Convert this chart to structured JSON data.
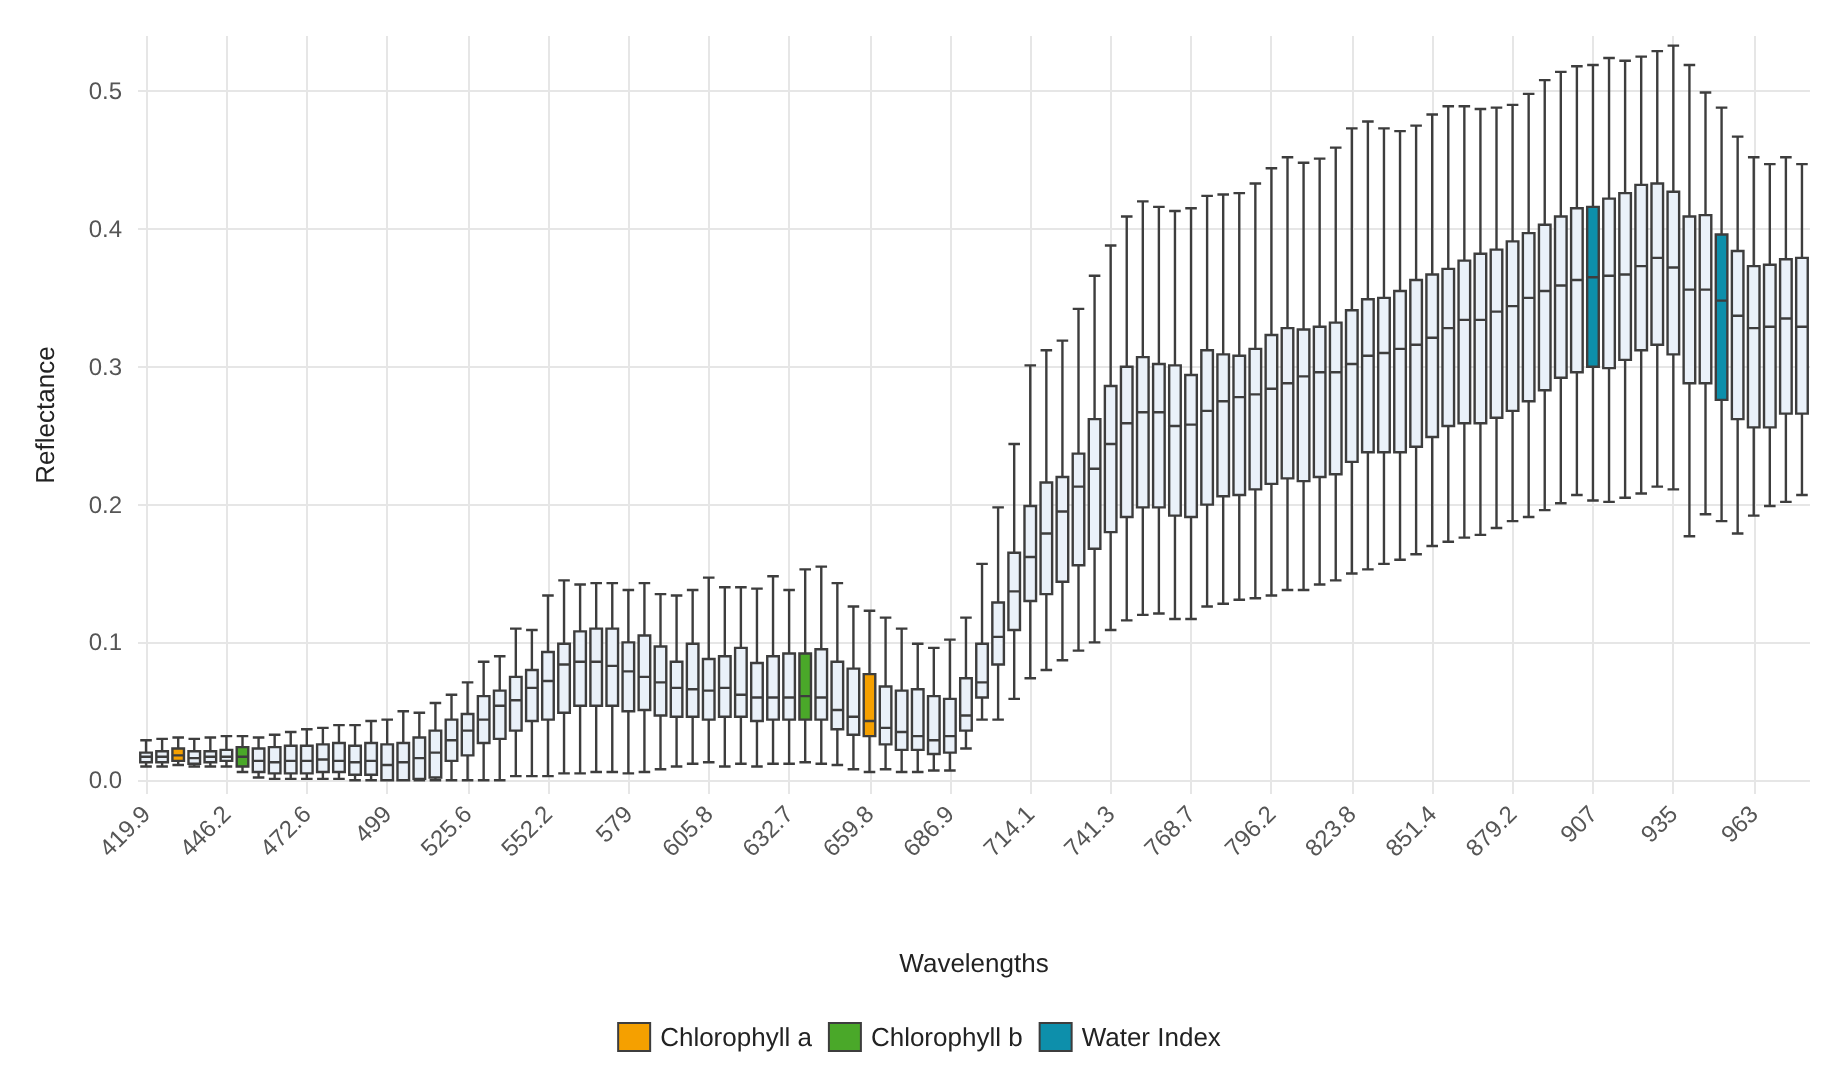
{
  "chart_data": {
    "type": "box",
    "xlabel": "Wavelengths",
    "ylabel": "Reflectance",
    "categories": [
      "419.9",
      null,
      null,
      null,
      null,
      "446.2",
      null,
      null,
      null,
      null,
      "472.6",
      null,
      null,
      null,
      null,
      "499",
      null,
      null,
      null,
      null,
      "525.6",
      null,
      null,
      null,
      null,
      "552.2",
      null,
      null,
      null,
      null,
      "579",
      null,
      null,
      null,
      null,
      "605.8",
      null,
      null,
      null,
      null,
      "632.7",
      null,
      null,
      null,
      null,
      "659.8",
      null,
      null,
      null,
      null,
      "686.9",
      null,
      null,
      null,
      null,
      "714.1",
      null,
      null,
      null,
      null,
      "741.3",
      null,
      null,
      null,
      null,
      "768.7",
      null,
      null,
      null,
      null,
      "796.2",
      null,
      null,
      null,
      null,
      "823.8",
      null,
      null,
      null,
      null,
      "851.4",
      null,
      null,
      null,
      null,
      "879.2",
      null,
      null,
      null,
      null,
      "907",
      null,
      null,
      null,
      null,
      "935",
      null,
      null,
      null,
      null,
      "963",
      null,
      null,
      null
    ],
    "ylim": [
      -0.01,
      0.54
    ],
    "yticks": [
      {
        "value": 0,
        "label": "0.0"
      },
      {
        "value": 0.1,
        "label": "0.1"
      },
      {
        "value": 0.2,
        "label": "0.2"
      },
      {
        "value": 0.3,
        "label": "0.3"
      },
      {
        "value": 0.4,
        "label": "0.4"
      },
      {
        "value": 0.5,
        "label": "0.5"
      }
    ],
    "grid": true,
    "legend": "bottom",
    "series": [
      {
        "color": "#eaf1f9",
        "boxes": [
          {
            "low": 0.01,
            "q1": 0.013,
            "median": 0.017,
            "q3": 0.02,
            "high": 0.029
          },
          {
            "low": 0.01,
            "q1": 0.013,
            "median": 0.017,
            "q3": 0.021,
            "high": 0.03
          },
          null,
          {
            "low": 0.01,
            "q1": 0.012,
            "median": 0.016,
            "q3": 0.021,
            "high": 0.03
          },
          {
            "low": 0.01,
            "q1": 0.013,
            "median": 0.017,
            "q3": 0.021,
            "high": 0.031
          },
          {
            "low": 0.01,
            "q1": 0.014,
            "median": 0.017,
            "q3": 0.022,
            "high": 0.032
          },
          null,
          {
            "low": 0.002,
            "q1": 0.006,
            "median": 0.014,
            "q3": 0.023,
            "high": 0.031
          },
          {
            "low": 0.001,
            "q1": 0.005,
            "median": 0.013,
            "q3": 0.024,
            "high": 0.033
          },
          {
            "low": 0.001,
            "q1": 0.005,
            "median": 0.014,
            "q3": 0.025,
            "high": 0.035
          },
          {
            "low": 0.001,
            "q1": 0.005,
            "median": 0.014,
            "q3": 0.025,
            "high": 0.037
          },
          {
            "low": 0.001,
            "q1": 0.006,
            "median": 0.015,
            "q3": 0.026,
            "high": 0.038
          },
          {
            "low": 0.001,
            "q1": 0.006,
            "median": 0.014,
            "q3": 0.027,
            "high": 0.04
          },
          {
            "low": 0.0,
            "q1": 0.004,
            "median": 0.013,
            "q3": 0.025,
            "high": 0.04
          },
          {
            "low": 0.0,
            "q1": 0.004,
            "median": 0.014,
            "q3": 0.027,
            "high": 0.043
          },
          {
            "low": 0.0,
            "q1": 0.0,
            "median": 0.011,
            "q3": 0.026,
            "high": 0.044
          },
          {
            "low": 0.0,
            "q1": 0.0,
            "median": 0.013,
            "q3": 0.027,
            "high": 0.05
          },
          {
            "low": 0.0,
            "q1": 0.001,
            "median": 0.016,
            "q3": 0.031,
            "high": 0.049
          },
          {
            "low": 0.0,
            "q1": 0.002,
            "median": 0.02,
            "q3": 0.036,
            "high": 0.056
          },
          {
            "low": 0.0,
            "q1": 0.014,
            "median": 0.029,
            "q3": 0.044,
            "high": 0.062
          },
          {
            "low": 0.0,
            "q1": 0.018,
            "median": 0.036,
            "q3": 0.048,
            "high": 0.071
          },
          {
            "low": 0.0,
            "q1": 0.027,
            "median": 0.044,
            "q3": 0.061,
            "high": 0.086
          },
          {
            "low": 0.0,
            "q1": 0.03,
            "median": 0.054,
            "q3": 0.065,
            "high": 0.09
          },
          {
            "low": 0.003,
            "q1": 0.036,
            "median": 0.058,
            "q3": 0.075,
            "high": 0.11
          },
          {
            "low": 0.003,
            "q1": 0.043,
            "median": 0.067,
            "q3": 0.08,
            "high": 0.109
          },
          {
            "low": 0.003,
            "q1": 0.044,
            "median": 0.072,
            "q3": 0.093,
            "high": 0.134
          },
          {
            "low": 0.005,
            "q1": 0.049,
            "median": 0.084,
            "q3": 0.099,
            "high": 0.145
          },
          {
            "low": 0.005,
            "q1": 0.054,
            "median": 0.086,
            "q3": 0.108,
            "high": 0.142
          },
          {
            "low": 0.006,
            "q1": 0.054,
            "median": 0.086,
            "q3": 0.11,
            "high": 0.143
          },
          {
            "low": 0.006,
            "q1": 0.054,
            "median": 0.083,
            "q3": 0.11,
            "high": 0.143
          },
          {
            "low": 0.005,
            "q1": 0.05,
            "median": 0.079,
            "q3": 0.1,
            "high": 0.138
          },
          {
            "low": 0.006,
            "q1": 0.051,
            "median": 0.075,
            "q3": 0.105,
            "high": 0.143
          },
          {
            "low": 0.008,
            "q1": 0.047,
            "median": 0.071,
            "q3": 0.097,
            "high": 0.135
          },
          {
            "low": 0.01,
            "q1": 0.046,
            "median": 0.067,
            "q3": 0.086,
            "high": 0.134
          },
          {
            "low": 0.012,
            "q1": 0.046,
            "median": 0.066,
            "q3": 0.099,
            "high": 0.138
          },
          {
            "low": 0.013,
            "q1": 0.044,
            "median": 0.065,
            "q3": 0.088,
            "high": 0.147
          },
          {
            "low": 0.01,
            "q1": 0.046,
            "median": 0.067,
            "q3": 0.09,
            "high": 0.14
          },
          {
            "low": 0.012,
            "q1": 0.046,
            "median": 0.062,
            "q3": 0.096,
            "high": 0.14
          },
          {
            "low": 0.01,
            "q1": 0.043,
            "median": 0.06,
            "q3": 0.085,
            "high": 0.139
          },
          {
            "low": 0.012,
            "q1": 0.044,
            "median": 0.06,
            "q3": 0.09,
            "high": 0.148
          },
          {
            "low": 0.012,
            "q1": 0.044,
            "median": 0.06,
            "q3": 0.092,
            "high": 0.138
          },
          null,
          {
            "low": 0.012,
            "q1": 0.044,
            "median": 0.06,
            "q3": 0.095,
            "high": 0.155
          },
          {
            "low": 0.011,
            "q1": 0.037,
            "median": 0.051,
            "q3": 0.086,
            "high": 0.143
          },
          {
            "low": 0.008,
            "q1": 0.033,
            "median": 0.046,
            "q3": 0.081,
            "high": 0.126
          },
          null,
          {
            "low": 0.008,
            "q1": 0.026,
            "median": 0.038,
            "q3": 0.068,
            "high": 0.118
          },
          {
            "low": 0.006,
            "q1": 0.022,
            "median": 0.035,
            "q3": 0.065,
            "high": 0.11
          },
          {
            "low": 0.006,
            "q1": 0.022,
            "median": 0.032,
            "q3": 0.066,
            "high": 0.099
          },
          {
            "low": 0.007,
            "q1": 0.019,
            "median": 0.029,
            "q3": 0.061,
            "high": 0.096
          },
          {
            "low": 0.007,
            "q1": 0.02,
            "median": 0.032,
            "q3": 0.059,
            "high": 0.102
          },
          {
            "low": 0.023,
            "q1": 0.036,
            "median": 0.047,
            "q3": 0.074,
            "high": 0.118
          },
          {
            "low": 0.044,
            "q1": 0.06,
            "median": 0.071,
            "q3": 0.099,
            "high": 0.157
          },
          {
            "low": 0.044,
            "q1": 0.084,
            "median": 0.104,
            "q3": 0.129,
            "high": 0.198
          },
          {
            "low": 0.059,
            "q1": 0.109,
            "median": 0.137,
            "q3": 0.165,
            "high": 0.244
          },
          {
            "low": 0.074,
            "q1": 0.13,
            "median": 0.162,
            "q3": 0.199,
            "high": 0.301
          },
          {
            "low": 0.08,
            "q1": 0.135,
            "median": 0.179,
            "q3": 0.216,
            "high": 0.312
          },
          {
            "low": 0.087,
            "q1": 0.144,
            "median": 0.195,
            "q3": 0.22,
            "high": 0.319
          },
          {
            "low": 0.094,
            "q1": 0.156,
            "median": 0.213,
            "q3": 0.237,
            "high": 0.342
          },
          {
            "low": 0.1,
            "q1": 0.168,
            "median": 0.226,
            "q3": 0.262,
            "high": 0.366
          },
          {
            "low": 0.109,
            "q1": 0.18,
            "median": 0.244,
            "q3": 0.286,
            "high": 0.388
          },
          {
            "low": 0.116,
            "q1": 0.191,
            "median": 0.259,
            "q3": 0.3,
            "high": 0.409
          },
          {
            "low": 0.12,
            "q1": 0.198,
            "median": 0.267,
            "q3": 0.307,
            "high": 0.42
          },
          {
            "low": 0.121,
            "q1": 0.198,
            "median": 0.267,
            "q3": 0.302,
            "high": 0.416
          },
          {
            "low": 0.117,
            "q1": 0.192,
            "median": 0.257,
            "q3": 0.301,
            "high": 0.413
          },
          {
            "low": 0.117,
            "q1": 0.191,
            "median": 0.258,
            "q3": 0.294,
            "high": 0.415
          },
          {
            "low": 0.126,
            "q1": 0.2,
            "median": 0.268,
            "q3": 0.312,
            "high": 0.424
          },
          {
            "low": 0.128,
            "q1": 0.206,
            "median": 0.275,
            "q3": 0.309,
            "high": 0.425
          },
          {
            "low": 0.131,
            "q1": 0.207,
            "median": 0.278,
            "q3": 0.308,
            "high": 0.426
          },
          {
            "low": 0.132,
            "q1": 0.211,
            "median": 0.28,
            "q3": 0.313,
            "high": 0.433
          },
          {
            "low": 0.134,
            "q1": 0.215,
            "median": 0.284,
            "q3": 0.323,
            "high": 0.444
          },
          {
            "low": 0.138,
            "q1": 0.219,
            "median": 0.288,
            "q3": 0.328,
            "high": 0.452
          },
          {
            "low": 0.138,
            "q1": 0.217,
            "median": 0.293,
            "q3": 0.327,
            "high": 0.448
          },
          {
            "low": 0.142,
            "q1": 0.22,
            "median": 0.296,
            "q3": 0.329,
            "high": 0.451
          },
          {
            "low": 0.145,
            "q1": 0.222,
            "median": 0.296,
            "q3": 0.332,
            "high": 0.459
          },
          {
            "low": 0.15,
            "q1": 0.231,
            "median": 0.302,
            "q3": 0.341,
            "high": 0.473
          },
          {
            "low": 0.153,
            "q1": 0.238,
            "median": 0.308,
            "q3": 0.349,
            "high": 0.478
          },
          {
            "low": 0.157,
            "q1": 0.238,
            "median": 0.31,
            "q3": 0.35,
            "high": 0.473
          },
          {
            "low": 0.16,
            "q1": 0.238,
            "median": 0.313,
            "q3": 0.355,
            "high": 0.471
          },
          {
            "low": 0.164,
            "q1": 0.242,
            "median": 0.316,
            "q3": 0.363,
            "high": 0.475
          },
          {
            "low": 0.17,
            "q1": 0.249,
            "median": 0.321,
            "q3": 0.367,
            "high": 0.483
          },
          {
            "low": 0.173,
            "q1": 0.257,
            "median": 0.328,
            "q3": 0.371,
            "high": 0.489
          },
          {
            "low": 0.176,
            "q1": 0.259,
            "median": 0.334,
            "q3": 0.377,
            "high": 0.489
          },
          {
            "low": 0.178,
            "q1": 0.259,
            "median": 0.334,
            "q3": 0.382,
            "high": 0.487
          },
          {
            "low": 0.183,
            "q1": 0.263,
            "median": 0.34,
            "q3": 0.385,
            "high": 0.488
          },
          {
            "low": 0.188,
            "q1": 0.268,
            "median": 0.344,
            "q3": 0.391,
            "high": 0.49
          },
          {
            "low": 0.191,
            "q1": 0.275,
            "median": 0.35,
            "q3": 0.397,
            "high": 0.498
          },
          {
            "low": 0.196,
            "q1": 0.283,
            "median": 0.355,
            "q3": 0.403,
            "high": 0.508
          },
          {
            "low": 0.201,
            "q1": 0.292,
            "median": 0.359,
            "q3": 0.409,
            "high": 0.514
          },
          {
            "low": 0.207,
            "q1": 0.296,
            "median": 0.363,
            "q3": 0.415,
            "high": 0.518
          },
          null,
          {
            "low": 0.202,
            "q1": 0.299,
            "median": 0.366,
            "q3": 0.422,
            "high": 0.524
          },
          {
            "low": 0.205,
            "q1": 0.305,
            "median": 0.367,
            "q3": 0.426,
            "high": 0.522
          },
          {
            "low": 0.208,
            "q1": 0.312,
            "median": 0.373,
            "q3": 0.432,
            "high": 0.525
          },
          {
            "low": 0.213,
            "q1": 0.316,
            "median": 0.379,
            "q3": 0.433,
            "high": 0.529
          },
          {
            "low": 0.211,
            "q1": 0.309,
            "median": 0.372,
            "q3": 0.427,
            "high": 0.533
          },
          {
            "low": 0.177,
            "q1": 0.288,
            "median": 0.356,
            "q3": 0.409,
            "high": 0.519
          },
          {
            "low": 0.193,
            "q1": 0.288,
            "median": 0.356,
            "q3": 0.41,
            "high": 0.499
          },
          null,
          {
            "low": 0.179,
            "q1": 0.262,
            "median": 0.337,
            "q3": 0.384,
            "high": 0.467
          },
          {
            "low": 0.192,
            "q1": 0.256,
            "median": 0.328,
            "q3": 0.373,
            "high": 0.452
          },
          {
            "low": 0.199,
            "q1": 0.256,
            "median": 0.329,
            "q3": 0.374,
            "high": 0.447
          },
          {
            "low": 0.202,
            "q1": 0.266,
            "median": 0.335,
            "q3": 0.378,
            "high": 0.452
          },
          {
            "low": 0.207,
            "q1": 0.266,
            "median": 0.329,
            "q3": 0.379,
            "high": 0.447
          }
        ]
      },
      {
        "name": "Chlorophyll a",
        "color": "#f5a000",
        "boxes": [
          null,
          null,
          {
            "low": 0.011,
            "q1": 0.014,
            "median": 0.018,
            "q3": 0.023,
            "high": 0.031
          },
          null,
          null,
          null,
          null,
          null,
          null,
          null,
          null,
          null,
          null,
          null,
          null,
          null,
          null,
          null,
          null,
          null,
          null,
          null,
          null,
          null,
          null,
          null,
          null,
          null,
          null,
          null,
          null,
          null,
          null,
          null,
          null,
          null,
          null,
          null,
          null,
          null,
          null,
          null,
          null,
          null,
          null,
          {
            "low": 0.006,
            "q1": 0.032,
            "median": 0.043,
            "q3": 0.077,
            "high": 0.123
          },
          null,
          null,
          null,
          null,
          null,
          null,
          null,
          null,
          null,
          null,
          null,
          null,
          null,
          null,
          null,
          null,
          null,
          null,
          null,
          null,
          null,
          null,
          null,
          null,
          null,
          null,
          null,
          null,
          null,
          null,
          null,
          null,
          null,
          null,
          null,
          null,
          null,
          null,
          null,
          null,
          null,
          null,
          null,
          null,
          null,
          null,
          null,
          null,
          null,
          null,
          null,
          null,
          null,
          null,
          null,
          null,
          null,
          null
        ]
      },
      {
        "name": "Chlorophyll b",
        "color": "#4aa829",
        "boxes": [
          null,
          null,
          null,
          null,
          null,
          null,
          {
            "low": 0.006,
            "q1": 0.01,
            "median": 0.017,
            "q3": 0.024,
            "high": 0.032
          },
          null,
          null,
          null,
          null,
          null,
          null,
          null,
          null,
          null,
          null,
          null,
          null,
          null,
          null,
          null,
          null,
          null,
          null,
          null,
          null,
          null,
          null,
          null,
          null,
          null,
          null,
          null,
          null,
          null,
          null,
          null,
          null,
          null,
          null,
          {
            "low": 0.013,
            "q1": 0.044,
            "median": 0.061,
            "q3": 0.092,
            "high": 0.153
          },
          null,
          null,
          null,
          null,
          null,
          null,
          null,
          null,
          null,
          null,
          null,
          null,
          null,
          null,
          null,
          null,
          null,
          null,
          null,
          null,
          null,
          null,
          null,
          null,
          null,
          null,
          null,
          null,
          null,
          null,
          null,
          null,
          null,
          null,
          null,
          null,
          null,
          null,
          null,
          null,
          null,
          null,
          null,
          null,
          null,
          null,
          null,
          null,
          null,
          null,
          null,
          null,
          null,
          null,
          null,
          null,
          null,
          null,
          null,
          null,
          null,
          null
        ]
      },
      {
        "name": "Water Index",
        "color": "#0d8fab",
        "boxes": [
          null,
          null,
          null,
          null,
          null,
          null,
          null,
          null,
          null,
          null,
          null,
          null,
          null,
          null,
          null,
          null,
          null,
          null,
          null,
          null,
          null,
          null,
          null,
          null,
          null,
          null,
          null,
          null,
          null,
          null,
          null,
          null,
          null,
          null,
          null,
          null,
          null,
          null,
          null,
          null,
          null,
          null,
          null,
          null,
          null,
          null,
          null,
          null,
          null,
          null,
          null,
          null,
          null,
          null,
          null,
          null,
          null,
          null,
          null,
          null,
          null,
          null,
          null,
          null,
          null,
          null,
          null,
          null,
          null,
          null,
          null,
          null,
          null,
          null,
          null,
          null,
          null,
          null,
          null,
          null,
          null,
          null,
          null,
          null,
          null,
          null,
          null,
          null,
          null,
          null,
          {
            "low": 0.203,
            "q1": 0.3,
            "median": 0.365,
            "q3": 0.416,
            "high": 0.519
          },
          null,
          null,
          null,
          null,
          null,
          null,
          null,
          {
            "low": 0.188,
            "q1": 0.276,
            "median": 0.348,
            "q3": 0.396,
            "high": 0.488
          },
          null,
          null,
          null,
          null,
          null
        ]
      }
    ]
  }
}
